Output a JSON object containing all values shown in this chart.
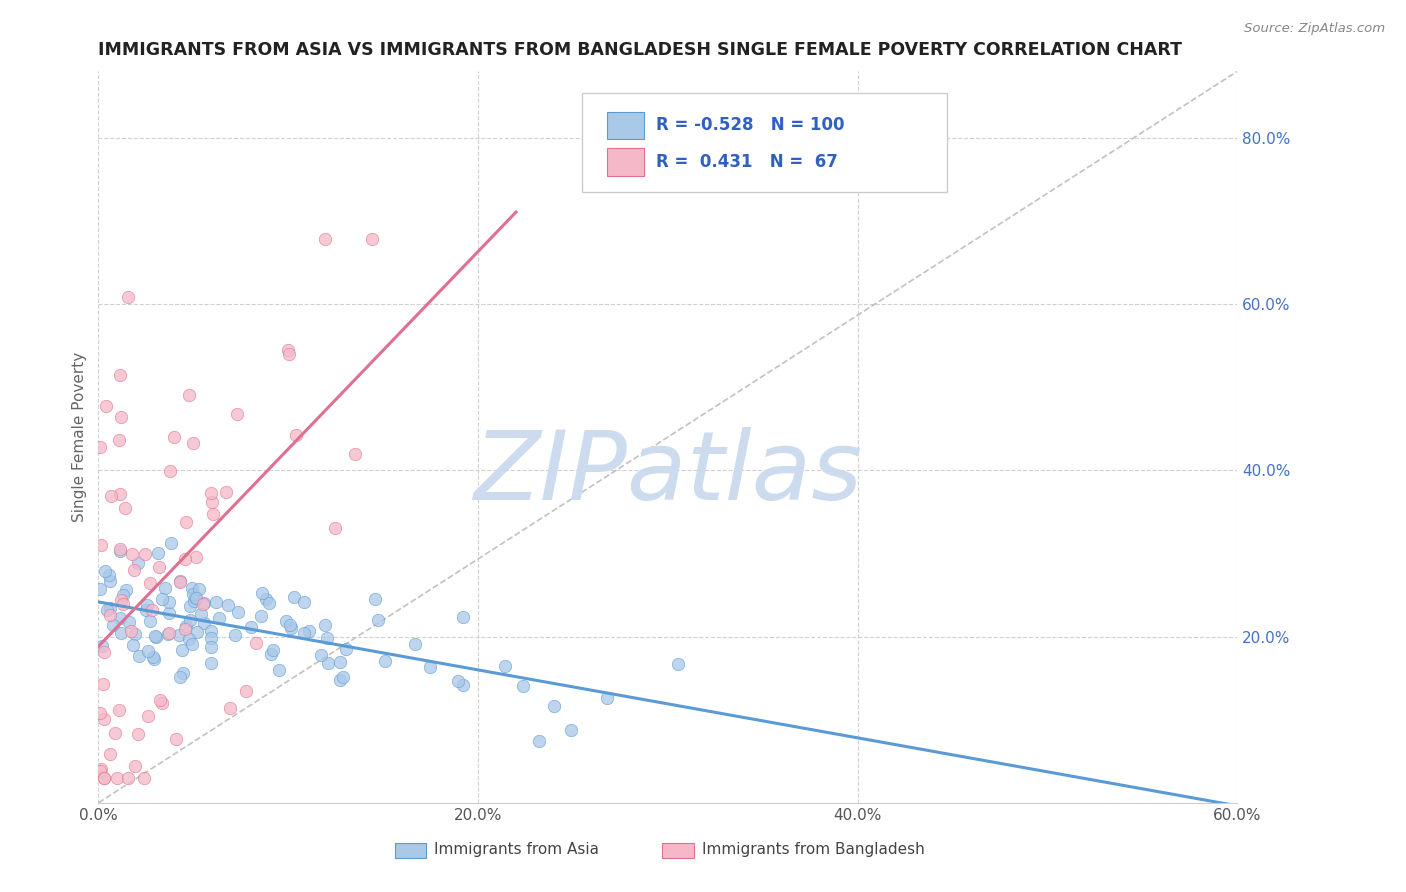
{
  "title": "IMMIGRANTS FROM ASIA VS IMMIGRANTS FROM BANGLADESH SINGLE FEMALE POVERTY CORRELATION CHART",
  "source_text": "Source: ZipAtlas.com",
  "ylabel": "Single Female Poverty",
  "xlim": [
    0.0,
    0.6
  ],
  "ylim": [
    0.0,
    0.88
  ],
  "xtick_labels": [
    "0.0%",
    "20.0%",
    "40.0%",
    "60.0%"
  ],
  "xtick_vals": [
    0.0,
    0.2,
    0.4,
    0.6
  ],
  "ytick_labels": [
    "20.0%",
    "40.0%",
    "60.0%",
    "80.0%"
  ],
  "ytick_vals": [
    0.2,
    0.4,
    0.6,
    0.8
  ],
  "color_asia": "#aac8e8",
  "color_bangladesh": "#f5b8c8",
  "color_asia_edge": "#5b9bd5",
  "color_bangladesh_edge": "#e07090",
  "trend_color_asia": "#5b9bd5",
  "trend_color_bangladesh": "#e07090",
  "watermark": "ZIPatlas",
  "watermark_color": "#ccdcee",
  "background_color": "#ffffff",
  "grid_color": "#cccccc",
  "title_color": "#222222",
  "axis_label_color": "#666666",
  "tick_color": "#4472c4",
  "R_asia": -0.528,
  "N_asia": 100,
  "R_bangladesh": 0.431,
  "N_bangladesh": 67,
  "legend_blue_label": "R = -0.528   N = 100",
  "legend_pink_label": "R =  0.431   N =  67",
  "bottom_label1": "Immigrants from Asia",
  "bottom_label2": "Immigrants from Bangladesh"
}
